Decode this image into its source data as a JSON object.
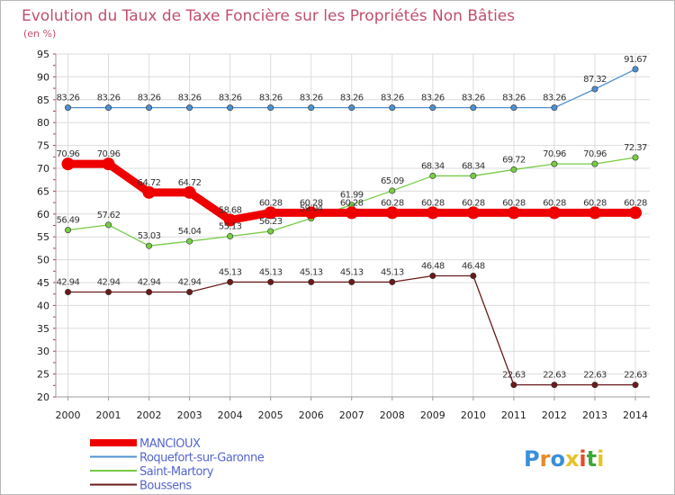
{
  "chart_data": {
    "type": "line",
    "title": "Evolution du Taux de Taxe Foncière sur les Propriétés Non Bâties",
    "subtitle": "(en %)",
    "xlabel": "",
    "ylabel": "",
    "ylim": [
      20,
      95
    ],
    "yticks": [
      20,
      25,
      30,
      35,
      40,
      45,
      50,
      55,
      60,
      65,
      70,
      75,
      80,
      85,
      90,
      95
    ],
    "categories": [
      "2000",
      "2001",
      "2002",
      "2003",
      "2004",
      "2005",
      "2006",
      "2007",
      "2008",
      "2009",
      "2010",
      "2011",
      "2012",
      "2013",
      "2014"
    ],
    "grid": true,
    "legend_position": "bottom-left",
    "series": [
      {
        "name": "MANCIOUX",
        "color": "#ee0000",
        "values": [
          70.96,
          70.96,
          64.72,
          64.72,
          58.68,
          60.28,
          60.28,
          60.28,
          60.28,
          60.28,
          60.28,
          60.28,
          60.28,
          60.28,
          60.28
        ],
        "labels": [
          "70.96",
          "70.96",
          "64.72",
          "64.72",
          "58.68",
          "60.28",
          "60.28",
          "60.28",
          "60.28",
          "60.28",
          "60.28",
          "60.28",
          "60.28",
          "60.28",
          "60.28"
        ]
      },
      {
        "name": "Roquefort-sur-Garonne",
        "color": "#4f90d0",
        "values": [
          83.26,
          83.26,
          83.26,
          83.26,
          83.26,
          83.26,
          83.26,
          83.26,
          83.26,
          83.26,
          83.26,
          83.26,
          83.26,
          87.32,
          91.67
        ],
        "labels": [
          "83.26",
          "83.26",
          "83.26",
          "83.26",
          "83.26",
          "83.26",
          "83.26",
          "83.26",
          "83.26",
          "83.26",
          "83.26",
          "83.26",
          "83.26",
          "87.32",
          "91.67"
        ]
      },
      {
        "name": "Saint-Martory",
        "color": "#77cc44",
        "values": [
          56.49,
          57.62,
          53.03,
          54.04,
          55.13,
          56.23,
          59.04,
          61.99,
          65.09,
          68.34,
          68.34,
          69.72,
          70.96,
          70.96,
          72.37
        ],
        "labels": [
          "56.49",
          "57.62",
          "53.03",
          "54.04",
          "55.13",
          "56.23",
          "59.04",
          "61.99",
          "65.09",
          "68.34",
          "68.34",
          "69.72",
          "70.96",
          "70.96",
          "72.37"
        ]
      },
      {
        "name": "Boussens",
        "color": "#6b1a1a",
        "values": [
          42.94,
          42.94,
          42.94,
          42.94,
          45.13,
          45.13,
          45.13,
          45.13,
          45.13,
          46.48,
          46.48,
          22.63,
          22.63,
          22.63,
          22.63
        ],
        "labels": [
          "42.94",
          "42.94",
          "42.94",
          "42.94",
          "45.13",
          "45.13",
          "45.13",
          "45.13",
          "45.13",
          "46.48",
          "46.48",
          "22.63",
          "22.63",
          "22.63",
          "22.63"
        ]
      }
    ]
  },
  "logo": {
    "text": "Proxiti"
  }
}
